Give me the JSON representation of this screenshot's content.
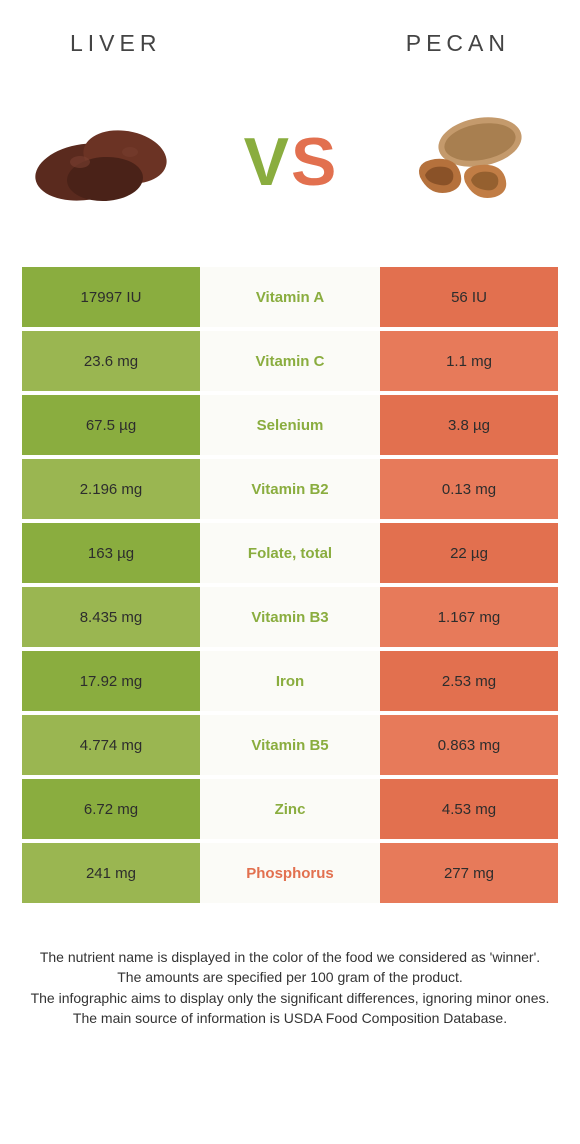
{
  "colors": {
    "left": "#8aad3f",
    "left_alt": "#9ab651",
    "right": "#e2704f",
    "right_alt": "#e77a5a",
    "mid_bg": "#fbfbf7",
    "text": "#333333",
    "header_text": "#444444"
  },
  "header": {
    "left": "LIVER",
    "right": "PECAN"
  },
  "vs": {
    "v": "V",
    "s": "S"
  },
  "rows": [
    {
      "left": "17997 IU",
      "label": "Vitamin A",
      "right": "56 IU",
      "winner": "left"
    },
    {
      "left": "23.6 mg",
      "label": "Vitamin C",
      "right": "1.1 mg",
      "winner": "left"
    },
    {
      "left": "67.5 µg",
      "label": "Selenium",
      "right": "3.8 µg",
      "winner": "left"
    },
    {
      "left": "2.196 mg",
      "label": "Vitamin B2",
      "right": "0.13 mg",
      "winner": "left"
    },
    {
      "left": "163 µg",
      "label": "Folate, total",
      "right": "22 µg",
      "winner": "left"
    },
    {
      "left": "8.435 mg",
      "label": "Vitamin B3",
      "right": "1.167 mg",
      "winner": "left"
    },
    {
      "left": "17.92 mg",
      "label": "Iron",
      "right": "2.53 mg",
      "winner": "left"
    },
    {
      "left": "4.774 mg",
      "label": "Vitamin B5",
      "right": "0.863 mg",
      "winner": "left"
    },
    {
      "left": "6.72 mg",
      "label": "Zinc",
      "right": "4.53 mg",
      "winner": "left"
    },
    {
      "left": "241 mg",
      "label": "Phosphorus",
      "right": "277 mg",
      "winner": "right"
    }
  ],
  "footer": {
    "line1": "The nutrient name is displayed in the color of the food we considered as 'winner'.",
    "line2": "The amounts are specified per 100 gram of the product.",
    "line3": "The infographic aims to display only the significant differences, ignoring minor ones.",
    "line4": "The main source of information is USDA Food Composition Database."
  }
}
